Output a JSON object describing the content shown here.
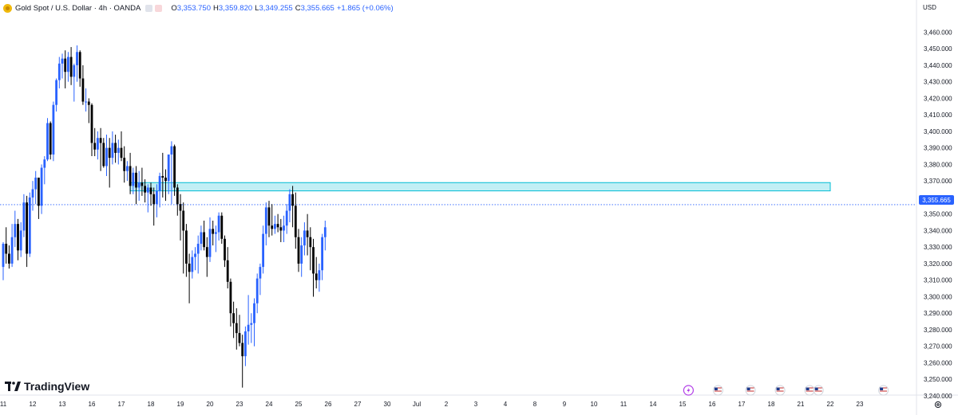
{
  "legend": {
    "symbol": "Gold Spot / U.S. Dollar · 4h · OANDA",
    "open_label": "O",
    "open": "3,353.750",
    "high_label": "H",
    "high": "3,359.820",
    "low_label": "L",
    "low": "3,349.255",
    "close_label": "C",
    "close": "3,355.665",
    "change": "+1.865 (+0.06%)"
  },
  "currency": "USD",
  "last_price": "3,355.665",
  "brand": "TradingView",
  "icons": [
    "gold-coin-icon",
    "tradingview-logo-icon",
    "lightning-event-icon",
    "us-flag-icon",
    "settings-gear-icon"
  ],
  "colors": {
    "up": "#2962ff",
    "down": "#000000",
    "zone_fill": "#b2ebf2",
    "zone_border": "#00bcd4",
    "price_line": "#2962ff"
  },
  "chart_data": {
    "type": "candlestick",
    "title": "Gold Spot / U.S. Dollar · 4h · OANDA",
    "xlabel": "",
    "ylabel": "",
    "ylim": [
      3240,
      3465
    ],
    "y_ticks": [
      "3,460.000",
      "3,450.000",
      "3,440.000",
      "3,430.000",
      "3,420.000",
      "3,410.000",
      "3,400.000",
      "3,390.000",
      "3,380.000",
      "3,370.000",
      "3,360.000",
      "3,350.000",
      "3,340.000",
      "3,330.000",
      "3,320.000",
      "3,310.000",
      "3,300.000",
      "3,290.000",
      "3,280.000",
      "3,270.000",
      "3,260.000",
      "3,250.000",
      "3,240.000"
    ],
    "x_ticks": [
      {
        "label": "11",
        "bar": 0
      },
      {
        "label": "12",
        "bar": 10
      },
      {
        "label": "13",
        "bar": 20
      },
      {
        "label": "16",
        "bar": 30
      },
      {
        "label": "17",
        "bar": 40
      },
      {
        "label": "18",
        "bar": 50
      },
      {
        "label": "19",
        "bar": 60
      },
      {
        "label": "20",
        "bar": 70
      },
      {
        "label": "23",
        "bar": 80
      },
      {
        "label": "24",
        "bar": 90
      },
      {
        "label": "25",
        "bar": 100
      },
      {
        "label": "26",
        "bar": 110
      },
      {
        "label": "27",
        "bar": 120
      },
      {
        "label": "30",
        "bar": 130
      },
      {
        "label": "Jul",
        "bar": 140
      },
      {
        "label": "2",
        "bar": 150
      },
      {
        "label": "3",
        "bar": 160
      },
      {
        "label": "4",
        "bar": 170
      },
      {
        "label": "8",
        "bar": 180
      },
      {
        "label": "9",
        "bar": 190
      },
      {
        "label": "10",
        "bar": 200
      },
      {
        "label": "11",
        "bar": 210
      },
      {
        "label": "14",
        "bar": 220
      },
      {
        "label": "15",
        "bar": 230
      },
      {
        "label": "16",
        "bar": 240
      },
      {
        "label": "17",
        "bar": 250
      },
      {
        "label": "18",
        "bar": 260
      },
      {
        "label": "21",
        "bar": 270
      },
      {
        "label": "22",
        "bar": 280
      },
      {
        "label": "23",
        "bar": 290
      }
    ],
    "last_price": 3355.665,
    "resistance_zone": {
      "low": 3364,
      "high": 3369,
      "from_bar": 43,
      "to_bar": 280
    },
    "event_markers": [
      {
        "bar": 232,
        "icon": "lightning-event-icon"
      },
      {
        "bar": 242,
        "icon": "us-flag-icon"
      },
      {
        "bar": 253,
        "icon": "us-flag-icon"
      },
      {
        "bar": 263,
        "icon": "us-flag-icon"
      },
      {
        "bar": 273,
        "icon": "us-flag-icon"
      },
      {
        "bar": 276,
        "icon": "us-flag-icon"
      },
      {
        "bar": 298,
        "icon": "us-flag-icon"
      }
    ],
    "ohlc": [
      [
        3318,
        3333,
        3310,
        3332
      ],
      [
        3332,
        3342,
        3320,
        3326
      ],
      [
        3326,
        3331,
        3317,
        3320
      ],
      [
        3320,
        3344,
        3318,
        3336
      ],
      [
        3336,
        3352,
        3330,
        3344
      ],
      [
        3344,
        3347,
        3322,
        3328
      ],
      [
        3328,
        3345,
        3324,
        3340
      ],
      [
        3340,
        3362,
        3336,
        3357
      ],
      [
        3357,
        3361,
        3318,
        3326
      ],
      [
        3326,
        3363,
        3324,
        3360
      ],
      [
        3360,
        3370,
        3352,
        3365
      ],
      [
        3365,
        3376,
        3356,
        3372
      ],
      [
        3372,
        3372,
        3347,
        3355
      ],
      [
        3355,
        3380,
        3350,
        3378
      ],
      [
        3378,
        3385,
        3368,
        3383
      ],
      [
        3383,
        3408,
        3382,
        3405
      ],
      [
        3405,
        3406,
        3383,
        3386
      ],
      [
        3386,
        3418,
        3382,
        3416
      ],
      [
        3416,
        3432,
        3412,
        3431
      ],
      [
        3431,
        3445,
        3426,
        3441
      ],
      [
        3441,
        3447,
        3432,
        3444
      ],
      [
        3444,
        3449,
        3426,
        3436
      ],
      [
        3436,
        3448,
        3430,
        3445
      ],
      [
        3445,
        3451,
        3428,
        3433
      ],
      [
        3433,
        3441,
        3418,
        3440
      ],
      [
        3440,
        3452,
        3430,
        3448
      ],
      [
        3448,
        3449,
        3427,
        3432
      ],
      [
        3432,
        3440,
        3416,
        3418
      ],
      [
        3418,
        3426,
        3412,
        3418
      ],
      [
        3418,
        3420,
        3405,
        3416
      ],
      [
        3416,
        3417,
        3385,
        3393
      ],
      [
        3393,
        3402,
        3385,
        3389
      ],
      [
        3389,
        3400,
        3383,
        3396
      ],
      [
        3396,
        3402,
        3376,
        3393
      ],
      [
        3393,
        3396,
        3378,
        3379
      ],
      [
        3379,
        3398,
        3373,
        3390
      ],
      [
        3390,
        3396,
        3366,
        3384
      ],
      [
        3384,
        3400,
        3380,
        3393
      ],
      [
        3393,
        3398,
        3381,
        3387
      ],
      [
        3387,
        3395,
        3380,
        3390
      ],
      [
        3390,
        3400,
        3382,
        3384
      ],
      [
        3384,
        3391,
        3369,
        3376
      ],
      [
        3376,
        3382,
        3370,
        3379
      ],
      [
        3379,
        3387,
        3362,
        3367
      ],
      [
        3367,
        3378,
        3362,
        3375
      ],
      [
        3375,
        3379,
        3356,
        3366
      ],
      [
        3366,
        3376,
        3358,
        3369
      ],
      [
        3369,
        3378,
        3361,
        3367
      ],
      [
        3367,
        3371,
        3357,
        3363
      ],
      [
        3363,
        3368,
        3351,
        3366
      ],
      [
        3366,
        3369,
        3355,
        3362
      ],
      [
        3362,
        3366,
        3343,
        3356
      ],
      [
        3356,
        3368,
        3348,
        3364
      ],
      [
        3364,
        3375,
        3354,
        3373
      ],
      [
        3373,
        3387,
        3360,
        3372
      ],
      [
        3372,
        3377,
        3358,
        3370
      ],
      [
        3370,
        3386,
        3362,
        3386
      ],
      [
        3386,
        3394,
        3356,
        3391
      ],
      [
        3391,
        3392,
        3361,
        3366
      ],
      [
        3366,
        3368,
        3349,
        3356
      ],
      [
        3356,
        3362,
        3334,
        3352
      ],
      [
        3352,
        3357,
        3314,
        3340
      ],
      [
        3340,
        3344,
        3312,
        3320
      ],
      [
        3320,
        3326,
        3296,
        3315
      ],
      [
        3315,
        3328,
        3311,
        3324
      ],
      [
        3324,
        3330,
        3316,
        3326
      ],
      [
        3326,
        3337,
        3314,
        3332
      ],
      [
        3332,
        3343,
        3328,
        3339
      ],
      [
        3339,
        3346,
        3328,
        3330
      ],
      [
        3330,
        3336,
        3312,
        3324
      ],
      [
        3324,
        3348,
        3321,
        3341
      ],
      [
        3341,
        3346,
        3331,
        3338
      ],
      [
        3338,
        3343,
        3327,
        3339
      ],
      [
        3339,
        3351,
        3334,
        3349
      ],
      [
        3349,
        3351,
        3332,
        3335
      ],
      [
        3335,
        3337,
        3318,
        3322
      ],
      [
        3322,
        3330,
        3305,
        3309
      ],
      [
        3309,
        3311,
        3282,
        3290
      ],
      [
        3290,
        3297,
        3275,
        3284
      ],
      [
        3284,
        3293,
        3268,
        3278
      ],
      [
        3278,
        3289,
        3270,
        3272
      ],
      [
        3272,
        3277,
        3245,
        3264
      ],
      [
        3264,
        3282,
        3258,
        3279
      ],
      [
        3279,
        3301,
        3271,
        3283
      ],
      [
        3283,
        3290,
        3272,
        3284
      ],
      [
        3284,
        3299,
        3270,
        3296
      ],
      [
        3296,
        3314,
        3290,
        3311
      ],
      [
        3311,
        3320,
        3301,
        3318
      ],
      [
        3318,
        3343,
        3314,
        3338
      ],
      [
        3338,
        3357,
        3331,
        3354
      ],
      [
        3354,
        3358,
        3336,
        3343
      ],
      [
        3343,
        3356,
        3337,
        3341
      ],
      [
        3341,
        3349,
        3338,
        3344
      ],
      [
        3344,
        3350,
        3339,
        3342
      ],
      [
        3342,
        3347,
        3333,
        3340
      ],
      [
        3340,
        3349,
        3333,
        3343
      ],
      [
        3343,
        3356,
        3338,
        3352
      ],
      [
        3352,
        3365,
        3345,
        3362
      ],
      [
        3362,
        3367,
        3342,
        3355
      ],
      [
        3355,
        3363,
        3329,
        3336
      ],
      [
        3336,
        3341,
        3315,
        3320
      ],
      [
        3320,
        3336,
        3312,
        3331
      ],
      [
        3331,
        3345,
        3325,
        3340
      ],
      [
        3340,
        3350,
        3325,
        3336
      ],
      [
        3336,
        3342,
        3316,
        3330
      ],
      [
        3330,
        3335,
        3300,
        3314
      ],
      [
        3314,
        3324,
        3305,
        3310
      ],
      [
        3310,
        3320,
        3303,
        3316
      ],
      [
        3316,
        3338,
        3310,
        3336
      ],
      [
        3336,
        3346,
        3328,
        3342
      ]
    ]
  }
}
